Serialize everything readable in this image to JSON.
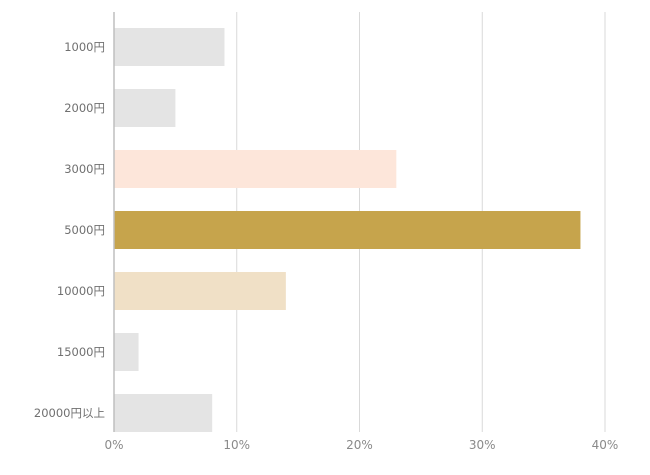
{
  "chart_data": {
    "type": "bar",
    "orientation": "horizontal",
    "categories": [
      "1000円",
      "2000円",
      "3000円",
      "5000円",
      "10000円",
      "15000円",
      "20000円以上"
    ],
    "values": [
      9,
      5,
      23,
      38,
      14,
      2,
      8
    ],
    "bar_colors": [
      "#e4e4e4",
      "#e4e4e4",
      "#fde6da",
      "#c6a44c",
      "#f0e0c6",
      "#e4e4e4",
      "#e4e4e4"
    ],
    "xlim": [
      0,
      40
    ],
    "xticks": [
      0,
      10,
      20,
      30,
      40
    ],
    "xtick_labels": [
      "0%",
      "10%",
      "20%",
      "30%",
      "40%"
    ],
    "grid": true,
    "legend": "none",
    "title": "",
    "xlabel": "",
    "ylabel": ""
  },
  "colors": {
    "gridline": "#d9d9d9",
    "axis_line": "#bfbfbf"
  }
}
